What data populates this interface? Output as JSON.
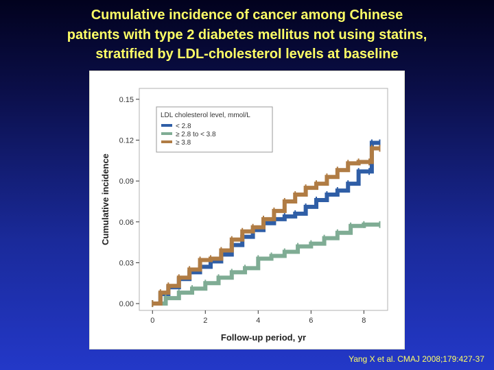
{
  "slide": {
    "title_lines": [
      "Cumulative incidence of cancer among Chinese",
      "patients with type 2 diabetes mellitus not using statins,",
      "stratified by LDL-cholesterol levels at baseline"
    ],
    "citation": "Yang X et al. CMAJ 2008;179:427-37"
  },
  "chart_data": {
    "type": "line",
    "title": "",
    "xlabel": "Follow-up period, yr",
    "ylabel": "Cumulative incidence",
    "xlim": [
      -0.5,
      8.9
    ],
    "ylim": [
      -0.005,
      0.158
    ],
    "xticks": [
      0,
      2,
      4,
      6,
      8
    ],
    "yticks": [
      0.0,
      0.03,
      0.06,
      0.09,
      0.12,
      0.15
    ],
    "ytick_labels": [
      "0.00",
      "0.03",
      "0.06",
      "0.09",
      "0.12",
      "0.15"
    ],
    "grid": false,
    "legend": {
      "title": "LDL cholesterol level, mmol/L",
      "placement": "top-left"
    },
    "series": [
      {
        "name": "< 2.8",
        "color": "#2f5ea6",
        "x": [
          0,
          0.3,
          0.6,
          1.0,
          1.4,
          1.8,
          2.2,
          2.6,
          3.0,
          3.4,
          3.8,
          4.2,
          4.6,
          5.0,
          5.4,
          5.8,
          6.2,
          6.6,
          7.0,
          7.4,
          7.8,
          8.2,
          8.3,
          8.6
        ],
        "y": [
          0,
          0.007,
          0.012,
          0.018,
          0.023,
          0.027,
          0.031,
          0.036,
          0.043,
          0.049,
          0.054,
          0.059,
          0.062,
          0.064,
          0.066,
          0.071,
          0.076,
          0.08,
          0.083,
          0.088,
          0.097,
          0.097,
          0.118,
          0.118
        ]
      },
      {
        "name": "≥ 2.8 to < 3.8",
        "color": "#7fac94",
        "x": [
          0,
          0.5,
          1.0,
          1.5,
          2.0,
          2.5,
          3.0,
          3.5,
          4.0,
          4.5,
          5.0,
          5.5,
          6.0,
          6.5,
          7.0,
          7.5,
          8.0,
          8.6
        ],
        "y": [
          0,
          0.004,
          0.008,
          0.011,
          0.015,
          0.019,
          0.023,
          0.026,
          0.033,
          0.035,
          0.038,
          0.042,
          0.044,
          0.048,
          0.052,
          0.057,
          0.058,
          0.058
        ]
      },
      {
        "name": "≥ 3.8",
        "color": "#b07c44",
        "x": [
          0,
          0.3,
          0.6,
          1.0,
          1.4,
          1.8,
          2.2,
          2.6,
          3.0,
          3.4,
          3.8,
          4.2,
          4.6,
          5.0,
          5.4,
          5.8,
          6.2,
          6.6,
          7.0,
          7.4,
          7.8,
          8.2,
          8.3,
          8.6
        ],
        "y": [
          0,
          0.008,
          0.013,
          0.019,
          0.025,
          0.032,
          0.033,
          0.039,
          0.047,
          0.053,
          0.056,
          0.062,
          0.068,
          0.075,
          0.08,
          0.085,
          0.088,
          0.093,
          0.098,
          0.103,
          0.104,
          0.104,
          0.114,
          0.114
        ]
      }
    ]
  }
}
